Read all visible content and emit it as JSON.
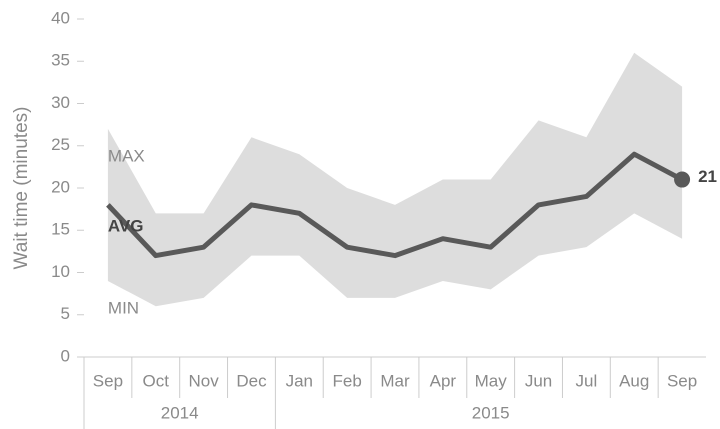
{
  "chart_data": {
    "type": "line-band",
    "ylabel": "Wait time (minutes)",
    "categories": [
      "Sep",
      "Oct",
      "Nov",
      "Dec",
      "Jan",
      "Feb",
      "Mar",
      "Apr",
      "May",
      "Jun",
      "Jul",
      "Aug",
      "Sep"
    ],
    "x_groups": [
      {
        "label": "2014",
        "span": 4
      },
      {
        "label": "2015",
        "span": 9
      }
    ],
    "series": [
      {
        "name": "AVG",
        "color": "#595959",
        "values": [
          18,
          12,
          13,
          18,
          17,
          13,
          12,
          14,
          13,
          18,
          19,
          24,
          21
        ]
      },
      {
        "name": "MAX",
        "color": "#dddddd",
        "values": [
          27,
          17,
          17,
          26,
          24,
          20,
          18,
          21,
          21,
          28,
          26,
          36,
          32
        ]
      },
      {
        "name": "MIN",
        "color": "#dddddd",
        "values": [
          9,
          6,
          7,
          12,
          12,
          7,
          7,
          9,
          8,
          12,
          13,
          17,
          14
        ]
      }
    ],
    "ylim": [
      0,
      40
    ],
    "yticks": [
      0,
      5,
      10,
      15,
      20,
      25,
      30,
      35,
      40
    ]
  }
}
